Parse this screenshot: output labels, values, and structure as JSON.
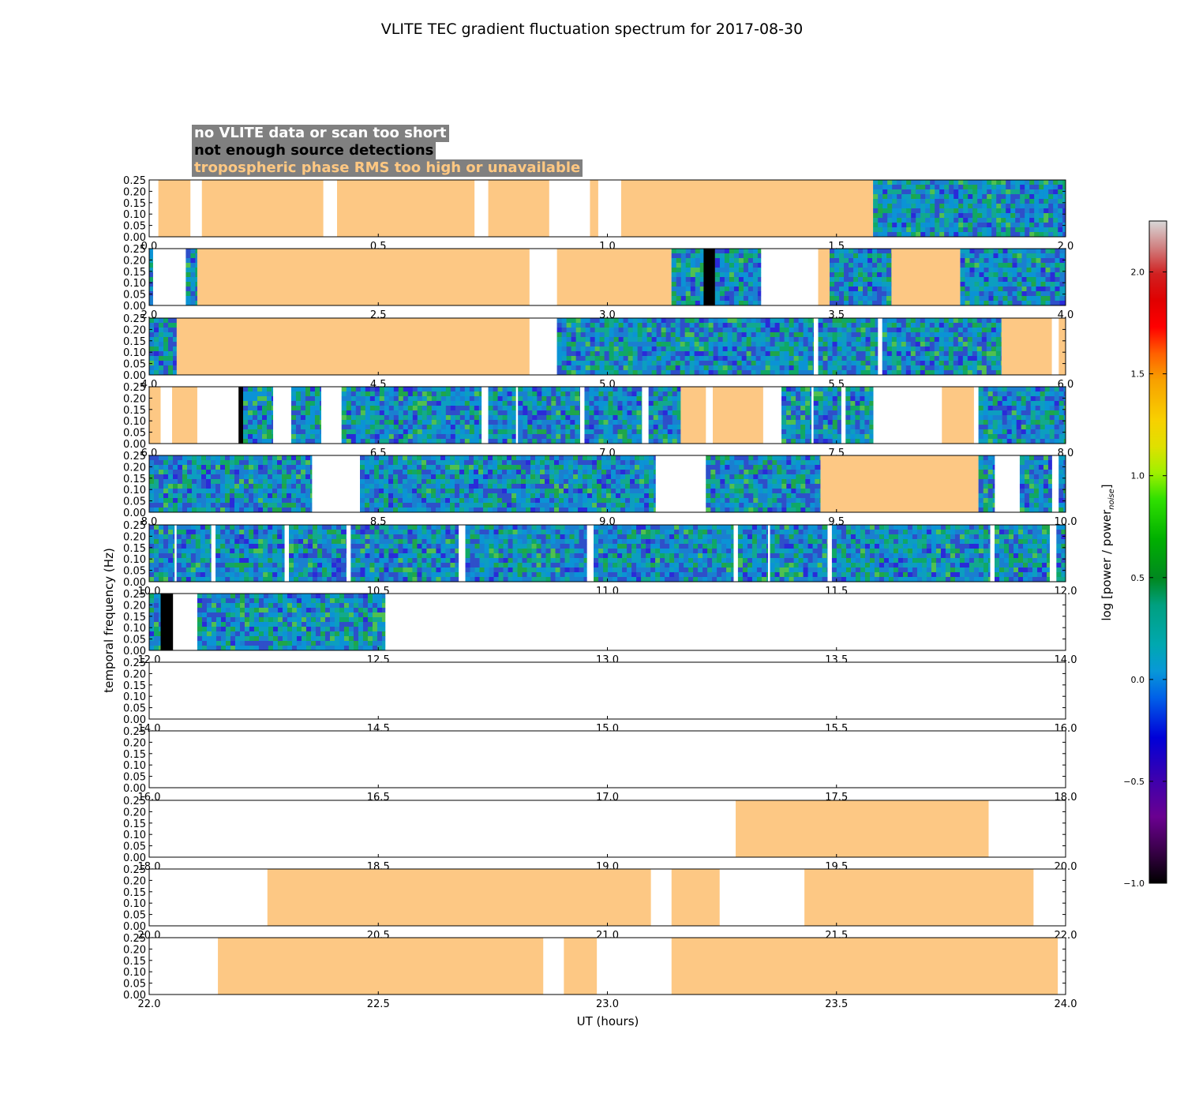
{
  "chart_data": {
    "type": "heatmap",
    "title": "VLITE TEC gradient fluctuation spectrum for 2017-08-30",
    "xlabel": "UT (hours)",
    "ylabel": "temporal frequency (Hz)",
    "ylim": [
      0,
      0.25
    ],
    "yticks": [
      "0.00",
      "0.05",
      "0.10",
      "0.15",
      "0.20",
      "0.25"
    ],
    "colorbar": {
      "label": "log [power / power_noise]",
      "label_main": "log [power / power",
      "label_sub": "noise",
      "label_end": "]",
      "range": [
        -1.0,
        2.25
      ],
      "ticks": [
        "−1.0",
        "−0.5",
        "0.0",
        "0.5",
        "1.0",
        "1.5",
        "2.0"
      ],
      "tick_values": [
        -1.0,
        -0.5,
        0.0,
        0.5,
        1.0,
        1.5,
        2.0
      ]
    },
    "legend": [
      {
        "label": "no VLITE data or scan too short",
        "color": "#ffffff"
      },
      {
        "label": "not enough source detections",
        "color": "#000000"
      },
      {
        "label": "tropospheric phase RMS too high or unavailable",
        "color": "#ffc882"
      }
    ],
    "colors": {
      "tropo": "#fdc884",
      "nodet": "#000000",
      "nodata": "#ffffff",
      "flat": "#0b93d5",
      "legend_bg": "#808080"
    },
    "rows": [
      {
        "xlim": [
          0.0,
          2.0
        ],
        "xticks": [
          "0.0",
          "0.5",
          "1.0",
          "1.5",
          "2.0"
        ],
        "segments": [
          {
            "start": 0.02,
            "end": 0.09,
            "kind": "tropo"
          },
          {
            "start": 0.115,
            "end": 0.38,
            "kind": "tropo"
          },
          {
            "start": 0.41,
            "end": 0.71,
            "kind": "tropo"
          },
          {
            "start": 0.74,
            "end": 0.873,
            "kind": "tropo"
          },
          {
            "start": 0.962,
            "end": 0.98,
            "kind": "tropo"
          },
          {
            "start": 1.03,
            "end": 1.58,
            "kind": "tropo"
          },
          {
            "start": 1.58,
            "end": 2.0,
            "kind": "spec"
          }
        ]
      },
      {
        "xlim": [
          2.0,
          4.0
        ],
        "xticks": [
          "2.0",
          "2.5",
          "3.0",
          "3.5",
          "4.0"
        ],
        "segments": [
          {
            "start": 2.0,
            "end": 2.008,
            "kind": "spec"
          },
          {
            "start": 2.08,
            "end": 2.105,
            "kind": "spec"
          },
          {
            "start": 2.105,
            "end": 2.83,
            "kind": "tropo"
          },
          {
            "start": 2.89,
            "end": 3.14,
            "kind": "tropo"
          },
          {
            "start": 3.14,
            "end": 3.21,
            "kind": "spec"
          },
          {
            "start": 3.21,
            "end": 3.235,
            "kind": "nodet"
          },
          {
            "start": 3.235,
            "end": 3.335,
            "kind": "spec"
          },
          {
            "start": 3.46,
            "end": 3.485,
            "kind": "tropo"
          },
          {
            "start": 3.485,
            "end": 3.62,
            "kind": "spec"
          },
          {
            "start": 3.62,
            "end": 3.77,
            "kind": "tropo"
          },
          {
            "start": 3.77,
            "end": 4.0,
            "kind": "spec"
          }
        ]
      },
      {
        "xlim": [
          4.0,
          6.0
        ],
        "xticks": [
          "4.0",
          "4.5",
          "5.0",
          "5.5",
          "6.0"
        ],
        "segments": [
          {
            "start": 4.0,
            "end": 4.06,
            "kind": "spec"
          },
          {
            "start": 4.06,
            "end": 4.83,
            "kind": "tropo"
          },
          {
            "start": 4.89,
            "end": 5.45,
            "kind": "spec"
          },
          {
            "start": 5.46,
            "end": 5.59,
            "kind": "spec"
          },
          {
            "start": 5.6,
            "end": 5.86,
            "kind": "spec"
          },
          {
            "start": 5.86,
            "end": 5.97,
            "kind": "tropo"
          },
          {
            "start": 5.985,
            "end": 6.0,
            "kind": "tropo"
          }
        ]
      },
      {
        "xlim": [
          6.0,
          8.0
        ],
        "xticks": [
          "6.0",
          "6.5",
          "7.0",
          "7.5",
          "8.0"
        ],
        "segments": [
          {
            "start": 6.0,
            "end": 6.025,
            "kind": "tropo"
          },
          {
            "start": 6.05,
            "end": 6.105,
            "kind": "tropo"
          },
          {
            "start": 6.195,
            "end": 6.205,
            "kind": "nodet"
          },
          {
            "start": 6.205,
            "end": 6.27,
            "kind": "spec"
          },
          {
            "start": 6.31,
            "end": 6.375,
            "kind": "spec"
          },
          {
            "start": 6.42,
            "end": 6.725,
            "kind": "spec"
          },
          {
            "start": 6.74,
            "end": 6.8,
            "kind": "spec"
          },
          {
            "start": 6.805,
            "end": 6.94,
            "kind": "spec"
          },
          {
            "start": 6.95,
            "end": 7.075,
            "kind": "spec"
          },
          {
            "start": 7.09,
            "end": 7.16,
            "kind": "spec"
          },
          {
            "start": 7.16,
            "end": 7.215,
            "kind": "tropo"
          },
          {
            "start": 7.23,
            "end": 7.34,
            "kind": "tropo"
          },
          {
            "start": 7.38,
            "end": 7.445,
            "kind": "spec"
          },
          {
            "start": 7.45,
            "end": 7.51,
            "kind": "spec"
          },
          {
            "start": 7.52,
            "end": 7.58,
            "kind": "spec"
          },
          {
            "start": 7.73,
            "end": 7.8,
            "kind": "tropo"
          },
          {
            "start": 7.81,
            "end": 8.0,
            "kind": "spec"
          }
        ]
      },
      {
        "xlim": [
          8.0,
          10.0
        ],
        "xticks": [
          "8.0",
          "8.5",
          "9.0",
          "9.5",
          "10.0"
        ],
        "segments": [
          {
            "start": 8.0,
            "end": 8.355,
            "kind": "spec"
          },
          {
            "start": 8.46,
            "end": 9.105,
            "kind": "spec"
          },
          {
            "start": 9.215,
            "end": 9.465,
            "kind": "spec"
          },
          {
            "start": 9.465,
            "end": 9.81,
            "kind": "tropo"
          },
          {
            "start": 9.81,
            "end": 9.845,
            "kind": "spec"
          },
          {
            "start": 9.9,
            "end": 9.97,
            "kind": "spec"
          },
          {
            "start": 9.985,
            "end": 10.0,
            "kind": "spec"
          }
        ]
      },
      {
        "xlim": [
          10.0,
          12.0
        ],
        "xticks": [
          "10.0",
          "10.5",
          "11.0",
          "11.5",
          "12.0"
        ],
        "segments": [
          {
            "start": 10.0,
            "end": 10.055,
            "kind": "spec"
          },
          {
            "start": 10.06,
            "end": 10.135,
            "kind": "spec"
          },
          {
            "start": 10.145,
            "end": 10.295,
            "kind": "spec"
          },
          {
            "start": 10.305,
            "end": 10.43,
            "kind": "spec"
          },
          {
            "start": 10.44,
            "end": 10.675,
            "kind": "spec"
          },
          {
            "start": 10.69,
            "end": 10.955,
            "kind": "spec"
          },
          {
            "start": 10.97,
            "end": 11.275,
            "kind": "spec"
          },
          {
            "start": 11.285,
            "end": 11.35,
            "kind": "spec"
          },
          {
            "start": 11.355,
            "end": 11.48,
            "kind": "spec"
          },
          {
            "start": 11.49,
            "end": 11.835,
            "kind": "spec"
          },
          {
            "start": 11.845,
            "end": 11.965,
            "kind": "spec"
          },
          {
            "start": 11.98,
            "end": 12.0,
            "kind": "spec"
          }
        ]
      },
      {
        "xlim": [
          12.0,
          14.0
        ],
        "xticks": [
          "12.0",
          "12.5",
          "13.0",
          "13.5",
          "14.0"
        ],
        "segments": [
          {
            "start": 12.0,
            "end": 12.025,
            "kind": "spec"
          },
          {
            "start": 12.025,
            "end": 12.052,
            "kind": "nodet"
          },
          {
            "start": 12.105,
            "end": 12.515,
            "kind": "spec"
          }
        ]
      },
      {
        "xlim": [
          14.0,
          16.0
        ],
        "xticks": [
          "14.0",
          "14.5",
          "15.0",
          "15.5",
          "16.0"
        ],
        "segments": []
      },
      {
        "xlim": [
          16.0,
          18.0
        ],
        "xticks": [
          "16.0",
          "16.5",
          "17.0",
          "17.5",
          "18.0"
        ],
        "segments": []
      },
      {
        "xlim": [
          18.0,
          20.0
        ],
        "xticks": [
          "18.0",
          "18.5",
          "19.0",
          "19.5",
          "20.0"
        ],
        "segments": [
          {
            "start": 19.28,
            "end": 19.832,
            "kind": "tropo"
          }
        ]
      },
      {
        "xlim": [
          20.0,
          22.0
        ],
        "xticks": [
          "20.0",
          "20.5",
          "21.0",
          "21.5",
          "22.0"
        ],
        "segments": [
          {
            "start": 20.258,
            "end": 21.095,
            "kind": "tropo"
          },
          {
            "start": 21.14,
            "end": 21.245,
            "kind": "tropo"
          },
          {
            "start": 21.43,
            "end": 21.93,
            "kind": "tropo"
          }
        ]
      },
      {
        "xlim": [
          22.0,
          24.0
        ],
        "xticks": [
          "22.0",
          "22.5",
          "23.0",
          "23.5",
          "24.0"
        ],
        "segments": [
          {
            "start": 22.15,
            "end": 22.86,
            "kind": "tropo"
          },
          {
            "start": 22.905,
            "end": 22.977,
            "kind": "tropo"
          },
          {
            "start": 23.14,
            "end": 23.983,
            "kind": "tropo"
          }
        ]
      }
    ]
  }
}
